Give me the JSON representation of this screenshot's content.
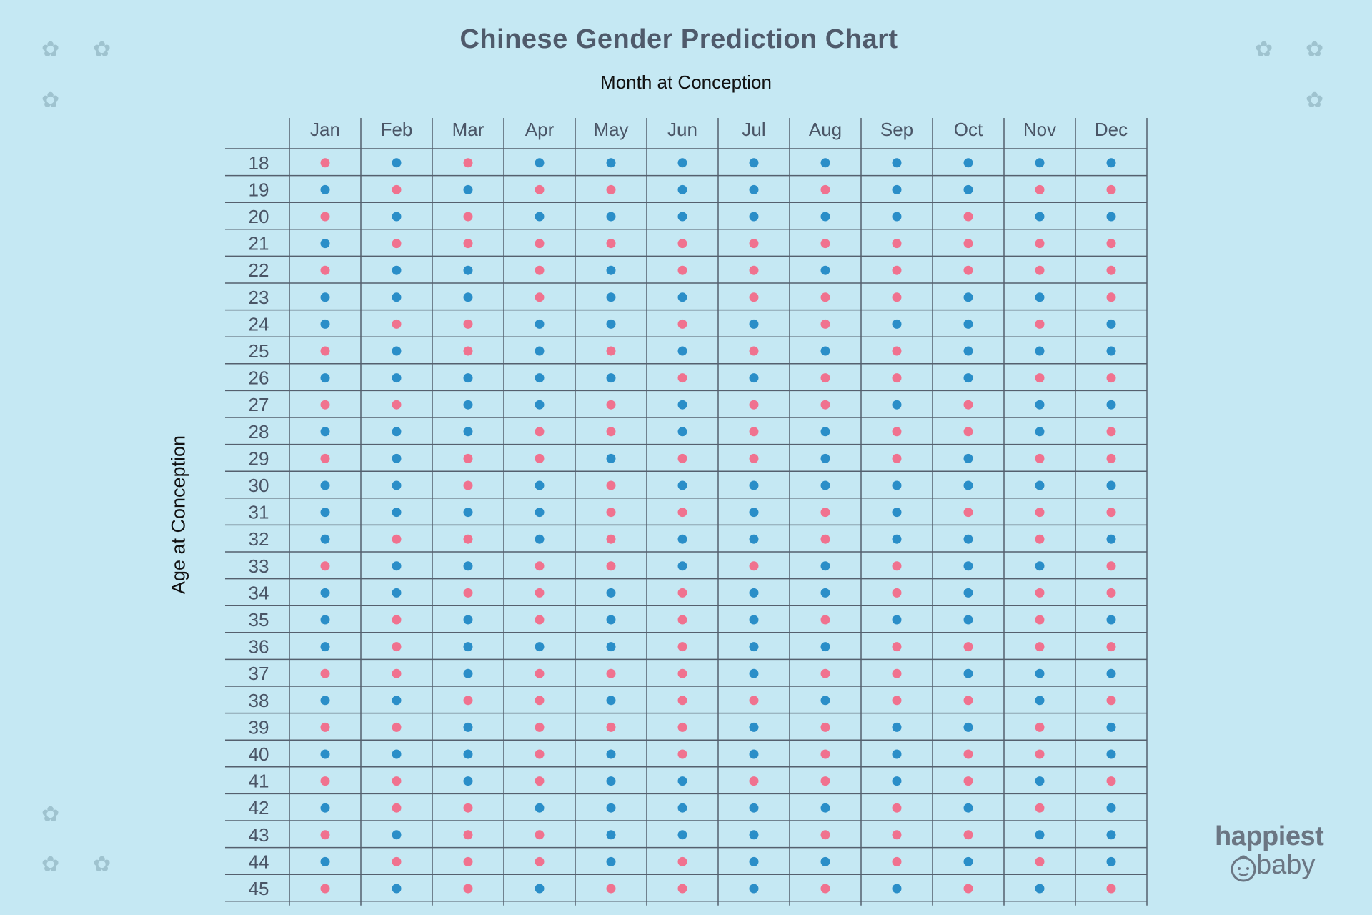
{
  "chart_data": {
    "type": "table",
    "title": "Chinese Gender Prediction Chart",
    "xlabel": "Month at Conception",
    "ylabel": "Age at Conception",
    "columns": [
      "Jan",
      "Feb",
      "Mar",
      "Apr",
      "May",
      "Jun",
      "Jul",
      "Aug",
      "Sep",
      "Oct",
      "Nov",
      "Dec"
    ],
    "rows": [
      "18",
      "19",
      "20",
      "21",
      "22",
      "23",
      "24",
      "25",
      "26",
      "27",
      "28",
      "29",
      "30",
      "31",
      "32",
      "33",
      "34",
      "35",
      "36",
      "37",
      "38",
      "39",
      "40",
      "41",
      "42",
      "43",
      "44",
      "45"
    ],
    "values": [
      [
        "pink",
        "blue",
        "pink",
        "blue",
        "blue",
        "blue",
        "blue",
        "blue",
        "blue",
        "blue",
        "blue",
        "blue"
      ],
      [
        "blue",
        "pink",
        "blue",
        "pink",
        "pink",
        "blue",
        "blue",
        "pink",
        "blue",
        "blue",
        "pink",
        "pink"
      ],
      [
        "pink",
        "blue",
        "pink",
        "blue",
        "blue",
        "blue",
        "blue",
        "blue",
        "blue",
        "pink",
        "blue",
        "blue"
      ],
      [
        "blue",
        "pink",
        "pink",
        "pink",
        "pink",
        "pink",
        "pink",
        "pink",
        "pink",
        "pink",
        "pink",
        "pink"
      ],
      [
        "pink",
        "blue",
        "blue",
        "pink",
        "blue",
        "pink",
        "pink",
        "blue",
        "pink",
        "pink",
        "pink",
        "pink"
      ],
      [
        "blue",
        "blue",
        "blue",
        "pink",
        "blue",
        "blue",
        "pink",
        "pink",
        "pink",
        "blue",
        "blue",
        "pink"
      ],
      [
        "blue",
        "pink",
        "pink",
        "blue",
        "blue",
        "pink",
        "blue",
        "pink",
        "blue",
        "blue",
        "pink",
        "blue"
      ],
      [
        "pink",
        "blue",
        "pink",
        "blue",
        "pink",
        "blue",
        "pink",
        "blue",
        "pink",
        "blue",
        "blue",
        "blue"
      ],
      [
        "blue",
        "blue",
        "blue",
        "blue",
        "blue",
        "pink",
        "blue",
        "pink",
        "pink",
        "blue",
        "pink",
        "pink"
      ],
      [
        "pink",
        "pink",
        "blue",
        "blue",
        "pink",
        "blue",
        "pink",
        "pink",
        "blue",
        "pink",
        "blue",
        "blue"
      ],
      [
        "blue",
        "blue",
        "blue",
        "pink",
        "pink",
        "blue",
        "pink",
        "blue",
        "pink",
        "pink",
        "blue",
        "pink"
      ],
      [
        "pink",
        "blue",
        "pink",
        "pink",
        "blue",
        "pink",
        "pink",
        "blue",
        "pink",
        "blue",
        "pink",
        "pink"
      ],
      [
        "blue",
        "blue",
        "pink",
        "blue",
        "pink",
        "blue",
        "blue",
        "blue",
        "blue",
        "blue",
        "blue",
        "blue"
      ],
      [
        "blue",
        "blue",
        "blue",
        "blue",
        "pink",
        "pink",
        "blue",
        "pink",
        "blue",
        "pink",
        "pink",
        "pink"
      ],
      [
        "blue",
        "pink",
        "pink",
        "blue",
        "pink",
        "blue",
        "blue",
        "pink",
        "blue",
        "blue",
        "pink",
        "blue"
      ],
      [
        "pink",
        "blue",
        "blue",
        "pink",
        "pink",
        "blue",
        "pink",
        "blue",
        "pink",
        "blue",
        "blue",
        "pink"
      ],
      [
        "blue",
        "blue",
        "pink",
        "pink",
        "blue",
        "pink",
        "blue",
        "blue",
        "pink",
        "blue",
        "pink",
        "pink"
      ],
      [
        "blue",
        "pink",
        "blue",
        "pink",
        "blue",
        "pink",
        "blue",
        "pink",
        "blue",
        "blue",
        "pink",
        "blue"
      ],
      [
        "blue",
        "pink",
        "blue",
        "blue",
        "blue",
        "pink",
        "blue",
        "blue",
        "pink",
        "pink",
        "pink",
        "pink"
      ],
      [
        "pink",
        "pink",
        "blue",
        "pink",
        "pink",
        "pink",
        "blue",
        "pink",
        "pink",
        "blue",
        "blue",
        "blue"
      ],
      [
        "blue",
        "blue",
        "pink",
        "pink",
        "blue",
        "pink",
        "pink",
        "blue",
        "pink",
        "pink",
        "blue",
        "pink"
      ],
      [
        "pink",
        "pink",
        "blue",
        "pink",
        "pink",
        "pink",
        "blue",
        "pink",
        "blue",
        "blue",
        "pink",
        "blue"
      ],
      [
        "blue",
        "blue",
        "blue",
        "pink",
        "blue",
        "pink",
        "blue",
        "pink",
        "blue",
        "pink",
        "pink",
        "blue"
      ],
      [
        "pink",
        "pink",
        "blue",
        "pink",
        "blue",
        "blue",
        "pink",
        "pink",
        "blue",
        "pink",
        "blue",
        "pink"
      ],
      [
        "blue",
        "pink",
        "pink",
        "blue",
        "blue",
        "blue",
        "blue",
        "blue",
        "pink",
        "blue",
        "pink",
        "blue"
      ],
      [
        "pink",
        "blue",
        "pink",
        "pink",
        "blue",
        "blue",
        "blue",
        "pink",
        "pink",
        "pink",
        "blue",
        "blue"
      ],
      [
        "blue",
        "pink",
        "pink",
        "pink",
        "blue",
        "pink",
        "blue",
        "blue",
        "pink",
        "blue",
        "pink",
        "blue"
      ],
      [
        "pink",
        "blue",
        "pink",
        "blue",
        "pink",
        "pink",
        "blue",
        "pink",
        "blue",
        "pink",
        "blue",
        "pink"
      ]
    ],
    "colors": {
      "pink": "#f0728f",
      "blue": "#2a8ec8"
    },
    "grid": true
  },
  "logo": {
    "line1": "happiest",
    "line2": "baby"
  },
  "decoration": {
    "glyph": "✿",
    "color": "#9fc3cf"
  }
}
